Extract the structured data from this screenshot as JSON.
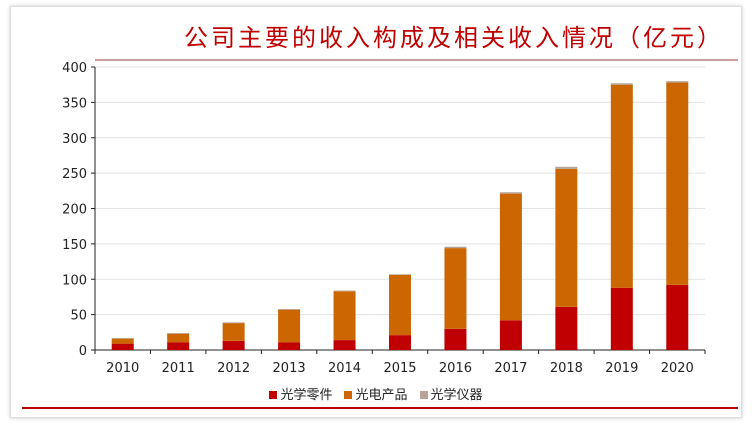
{
  "title": "公司主要的收入构成及相关收入情况（亿元）",
  "chart_data": {
    "type": "bar",
    "stacked": true,
    "title": "公司主要的收入构成及相关收入情况（亿元）",
    "categories": [
      "2010",
      "2011",
      "2012",
      "2013",
      "2014",
      "2015",
      "2016",
      "2017",
      "2018",
      "2019",
      "2020"
    ],
    "series": [
      {
        "name": "光学零件",
        "color": "#c00000",
        "values": [
          9,
          11,
          13,
          11,
          14,
          21,
          30,
          42,
          61,
          88,
          92
        ]
      },
      {
        "name": "光电产品",
        "color": "#cc6600",
        "values": [
          7,
          12,
          25,
          46,
          69,
          85,
          114,
          179,
          195,
          287,
          286
        ]
      },
      {
        "name": "光学仪器",
        "color": "#b4a49a",
        "values": [
          1,
          1,
          1,
          1,
          1,
          1,
          2,
          2,
          3,
          2,
          2
        ]
      }
    ],
    "ylim": [
      0,
      400
    ],
    "yticks": [
      0,
      50,
      100,
      150,
      200,
      250,
      300,
      350,
      400
    ],
    "grid": true,
    "legend": "bottom"
  }
}
